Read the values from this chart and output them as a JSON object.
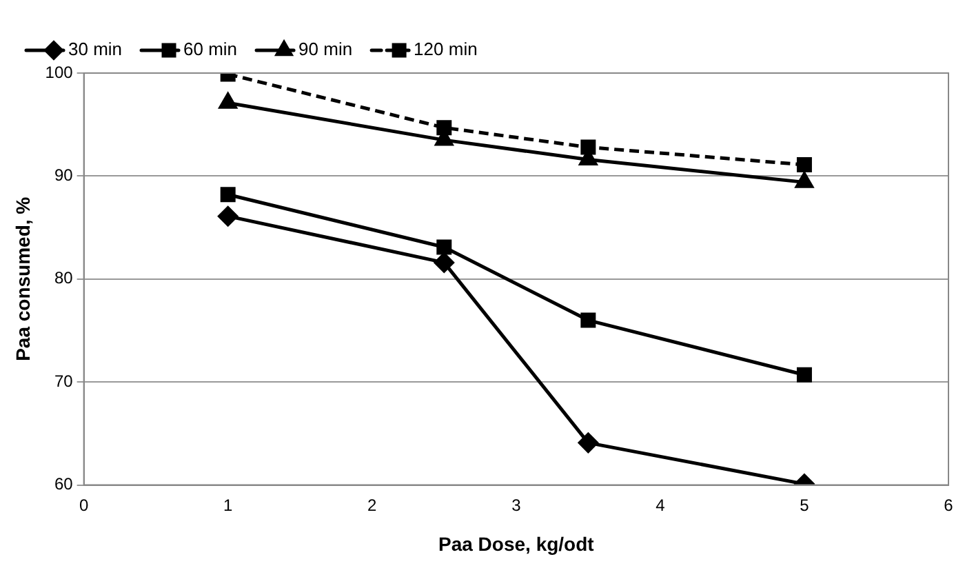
{
  "chart_data": {
    "type": "line",
    "xlabel": "Paa Dose, kg/odt",
    "ylabel": "Paa consumed, %",
    "x": [
      1,
      2.5,
      3.5,
      5
    ],
    "series": [
      {
        "name": "30 min",
        "color": "#000000",
        "marker": "diamond",
        "line_style": "solid",
        "values": [
          86.1,
          81.6,
          64.1,
          60.1
        ]
      },
      {
        "name": "60 min",
        "color": "#000000",
        "marker": "square",
        "line_style": "solid",
        "values": [
          88.2,
          83.1,
          76.0,
          70.7
        ]
      },
      {
        "name": "90 min",
        "color": "#000000",
        "marker": "triangle",
        "line_style": "solid",
        "values": [
          97.1,
          93.5,
          91.6,
          89.4
        ]
      },
      {
        "name": "120 min",
        "color": "#000000",
        "marker": "square",
        "line_style": "dashed",
        "values": [
          99.9,
          94.7,
          92.8,
          91.1
        ]
      }
    ],
    "xlim": [
      0,
      6
    ],
    "xticks": [
      0,
      1,
      2,
      3,
      4,
      5,
      6
    ],
    "ylim": [
      60,
      100
    ],
    "yticks": [
      60,
      70,
      80,
      90,
      100
    ],
    "grid": "y",
    "legend": "top"
  }
}
